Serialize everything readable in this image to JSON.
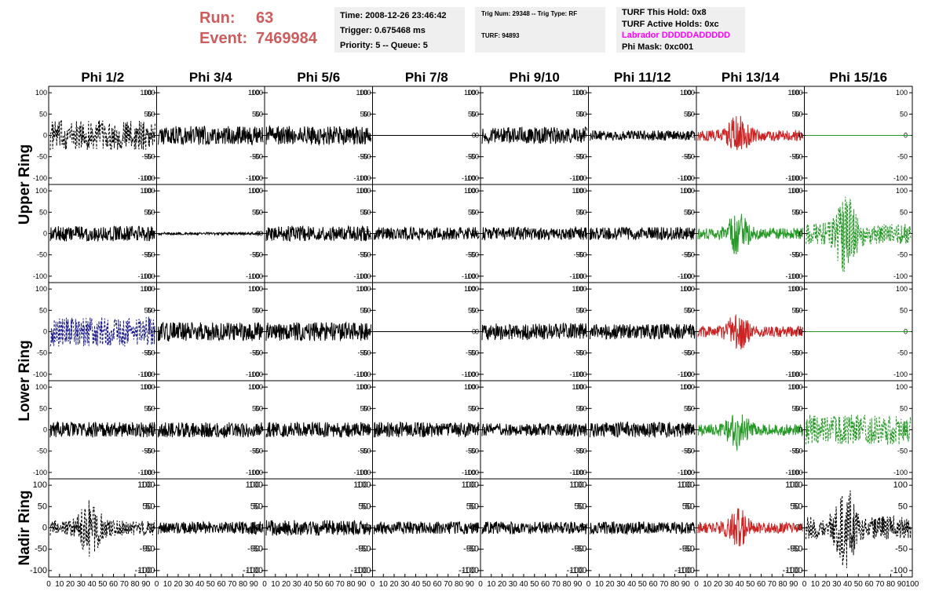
{
  "header": {
    "run_label": "Run:",
    "run_value": "63",
    "event_label": "Event:",
    "event_value": "7469984",
    "time": "Time: 2008-12-26 23:46:42",
    "trigger": "Trigger: 0.675468 ms",
    "priority": "Priority: 5 -- Queue: 5",
    "trig_num": "Trig Num: 29348 -- Trig Type: RF",
    "turf": "TURF: 94893",
    "turf_this_hold": "TURF This Hold: 0x8",
    "turf_active_holds": "TURF Active Holds: 0xc",
    "labrador": "Labrador DDDDDADDDDD",
    "phi_mask": "Phi Mask: 0xc001",
    "accent_color": "#cd5c5c",
    "labrador_color": "#ff00ff"
  },
  "chart_data": {
    "type": "line",
    "columns": [
      "Phi 1/2",
      "Phi 3/4",
      "Phi 5/6",
      "Phi 7/8",
      "Phi 9/10",
      "Phi 11/12",
      "Phi 13/14",
      "Phi 15/16"
    ],
    "row_groups": [
      "Upper Ring",
      "Lower Ring",
      "Nadir Ring"
    ],
    "x_ticks": [
      "0",
      "10",
      "20",
      "30",
      "40",
      "50",
      "60",
      "70",
      "80",
      "90",
      "100"
    ],
    "x_range": [
      0,
      100
    ],
    "y_ticks": [
      "100",
      "50",
      "0",
      "-50",
      "-100"
    ],
    "y_range": [
      -115,
      115
    ],
    "colors": {
      "black": "#000000",
      "red": "#cc2222",
      "green": "#229922",
      "blue": "#1a1a8c"
    },
    "panels": [
      [
        {
          "amp": 35,
          "style": "dashed",
          "color": "black",
          "kind": "noise"
        },
        {
          "amp": 22,
          "style": "solid",
          "color": "black",
          "kind": "noise"
        },
        {
          "amp": 22,
          "style": "solid",
          "color": "black",
          "kind": "noise"
        },
        {
          "amp": 0,
          "style": "solid",
          "color": "black",
          "kind": "flat"
        },
        {
          "amp": 20,
          "style": "solid",
          "color": "black",
          "kind": "noise"
        },
        {
          "amp": 12,
          "style": "solid",
          "color": "black",
          "kind": "noise"
        },
        {
          "amp": 28,
          "style": "solid",
          "color": "red",
          "kind": "pulse"
        },
        {
          "amp": 0,
          "style": "solid",
          "color": "green",
          "kind": "flat"
        }
      ],
      [
        {
          "amp": 18,
          "style": "solid",
          "color": "black",
          "kind": "noise"
        },
        {
          "amp": 3,
          "style": "solid",
          "color": "black",
          "kind": "noise"
        },
        {
          "amp": 18,
          "style": "solid",
          "color": "black",
          "kind": "noise"
        },
        {
          "amp": 15,
          "style": "solid",
          "color": "black",
          "kind": "noise"
        },
        {
          "amp": 15,
          "style": "solid",
          "color": "black",
          "kind": "noise"
        },
        {
          "amp": 15,
          "style": "solid",
          "color": "black",
          "kind": "noise"
        },
        {
          "amp": 30,
          "style": "solid",
          "color": "green",
          "kind": "pulse"
        },
        {
          "amp": 55,
          "style": "dashed",
          "color": "green",
          "kind": "pulse"
        }
      ],
      [
        {
          "amp": 35,
          "style": "dashed",
          "color": "blue",
          "kind": "noise"
        },
        {
          "amp": 22,
          "style": "solid",
          "color": "black",
          "kind": "noise"
        },
        {
          "amp": 22,
          "style": "solid",
          "color": "black",
          "kind": "noise"
        },
        {
          "amp": 0,
          "style": "solid",
          "color": "black",
          "kind": "flat"
        },
        {
          "amp": 20,
          "style": "solid",
          "color": "black",
          "kind": "noise"
        },
        {
          "amp": 18,
          "style": "solid",
          "color": "black",
          "kind": "noise"
        },
        {
          "amp": 28,
          "style": "solid",
          "color": "red",
          "kind": "pulse"
        },
        {
          "amp": 0,
          "style": "solid",
          "color": "green",
          "kind": "flat"
        }
      ],
      [
        {
          "amp": 18,
          "style": "solid",
          "color": "black",
          "kind": "noise"
        },
        {
          "amp": 18,
          "style": "solid",
          "color": "black",
          "kind": "noise"
        },
        {
          "amp": 18,
          "style": "solid",
          "color": "black",
          "kind": "noise"
        },
        {
          "amp": 18,
          "style": "solid",
          "color": "black",
          "kind": "noise"
        },
        {
          "amp": 15,
          "style": "solid",
          "color": "black",
          "kind": "noise"
        },
        {
          "amp": 18,
          "style": "solid",
          "color": "black",
          "kind": "noise"
        },
        {
          "amp": 30,
          "style": "solid",
          "color": "green",
          "kind": "pulse"
        },
        {
          "amp": 35,
          "style": "dashed",
          "color": "green",
          "kind": "noise"
        }
      ],
      [
        {
          "amp": 40,
          "style": "dashed",
          "color": "black",
          "kind": "pulse"
        },
        {
          "amp": 15,
          "style": "solid",
          "color": "black",
          "kind": "noise"
        },
        {
          "amp": 18,
          "style": "solid",
          "color": "black",
          "kind": "noise"
        },
        {
          "amp": 15,
          "style": "solid",
          "color": "black",
          "kind": "noise"
        },
        {
          "amp": 15,
          "style": "solid",
          "color": "black",
          "kind": "noise"
        },
        {
          "amp": 15,
          "style": "solid",
          "color": "black",
          "kind": "noise"
        },
        {
          "amp": 28,
          "style": "solid",
          "color": "red",
          "kind": "pulse"
        },
        {
          "amp": 60,
          "style": "dashed",
          "color": "black",
          "kind": "pulse"
        }
      ]
    ]
  }
}
